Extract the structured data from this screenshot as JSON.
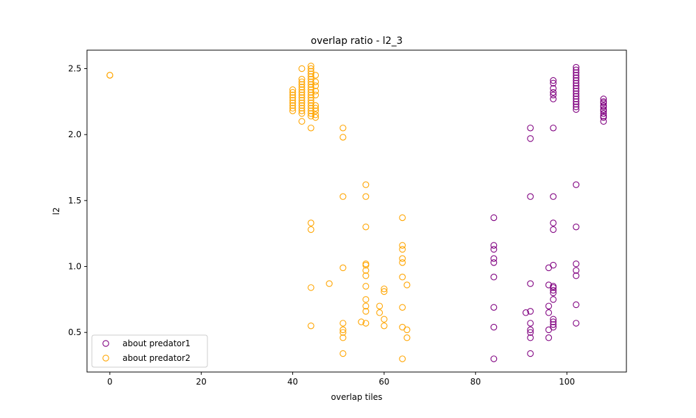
{
  "chart_data": {
    "type": "scatter",
    "title": "overlap ratio - l2_3",
    "xlabel": "overlap tiles",
    "ylabel": "l2",
    "xlim": [
      -5,
      113
    ],
    "ylim": [
      0.2,
      2.64
    ],
    "xticks": [
      0,
      20,
      40,
      60,
      80,
      100
    ],
    "yticks": [
      0.5,
      1.0,
      1.5,
      2.0,
      2.5
    ],
    "xtick_labels": [
      "0",
      "20",
      "40",
      "60",
      "80",
      "100"
    ],
    "ytick_labels": [
      "0.5",
      "1.0",
      "1.5",
      "2.0",
      "2.5"
    ],
    "grid": false,
    "legend_position": "lower-left",
    "series": [
      {
        "name": "about predator1",
        "color": "#800080",
        "marker": "open-circle",
        "points": [
          [
            84,
            1.37
          ],
          [
            84,
            1.16
          ],
          [
            84,
            1.13
          ],
          [
            84,
            1.06
          ],
          [
            84,
            1.03
          ],
          [
            84,
            0.92
          ],
          [
            84,
            0.69
          ],
          [
            84,
            0.54
          ],
          [
            84,
            0.3
          ],
          [
            91,
            0.65
          ],
          [
            92,
            2.05
          ],
          [
            92,
            1.97
          ],
          [
            92,
            1.53
          ],
          [
            92,
            0.87
          ],
          [
            92,
            0.66
          ],
          [
            92,
            0.57
          ],
          [
            92,
            0.52
          ],
          [
            92,
            0.5
          ],
          [
            92,
            0.46
          ],
          [
            92,
            0.34
          ],
          [
            96,
            0.99
          ],
          [
            96,
            0.86
          ],
          [
            96,
            0.7
          ],
          [
            96,
            0.65
          ],
          [
            96,
            0.52
          ],
          [
            96,
            0.46
          ],
          [
            97,
            2.41
          ],
          [
            97,
            2.39
          ],
          [
            97,
            2.35
          ],
          [
            97,
            2.32
          ],
          [
            97,
            2.3
          ],
          [
            97,
            2.27
          ],
          [
            97,
            2.05
          ],
          [
            97,
            1.53
          ],
          [
            97,
            1.33
          ],
          [
            97,
            1.28
          ],
          [
            97,
            1.01
          ],
          [
            97,
            0.85
          ],
          [
            97,
            0.84
          ],
          [
            97,
            0.82
          ],
          [
            97,
            0.8
          ],
          [
            97,
            0.75
          ],
          [
            97,
            0.6
          ],
          [
            97,
            0.58
          ],
          [
            97,
            0.56
          ],
          [
            97,
            0.54
          ],
          [
            102,
            2.51
          ],
          [
            102,
            2.49
          ],
          [
            102,
            2.47
          ],
          [
            102,
            2.45
          ],
          [
            102,
            2.43
          ],
          [
            102,
            2.41
          ],
          [
            102,
            2.39
          ],
          [
            102,
            2.37
          ],
          [
            102,
            2.35
          ],
          [
            102,
            2.33
          ],
          [
            102,
            2.31
          ],
          [
            102,
            2.29
          ],
          [
            102,
            2.27
          ],
          [
            102,
            2.25
          ],
          [
            102,
            2.23
          ],
          [
            102,
            2.21
          ],
          [
            102,
            2.19
          ],
          [
            102,
            1.62
          ],
          [
            102,
            1.3
          ],
          [
            102,
            1.02
          ],
          [
            102,
            0.97
          ],
          [
            102,
            0.93
          ],
          [
            102,
            0.71
          ],
          [
            102,
            0.57
          ],
          [
            108,
            2.27
          ],
          [
            108,
            2.25
          ],
          [
            108,
            2.24
          ],
          [
            108,
            2.22
          ],
          [
            108,
            2.21
          ],
          [
            108,
            2.19
          ],
          [
            108,
            2.18
          ],
          [
            108,
            2.16
          ],
          [
            108,
            2.14
          ],
          [
            108,
            2.13
          ],
          [
            108,
            2.1
          ]
        ]
      },
      {
        "name": "about predator2",
        "color": "#FFA500",
        "marker": "open-circle",
        "points": [
          [
            0,
            2.45
          ],
          [
            0,
            2.45
          ],
          [
            40,
            2.34
          ],
          [
            40,
            2.32
          ],
          [
            40,
            2.3
          ],
          [
            40,
            2.28
          ],
          [
            40,
            2.26
          ],
          [
            40,
            2.24
          ],
          [
            40,
            2.22
          ],
          [
            40,
            2.2
          ],
          [
            40,
            2.18
          ],
          [
            42,
            2.5
          ],
          [
            42,
            2.42
          ],
          [
            42,
            2.4
          ],
          [
            42,
            2.38
          ],
          [
            42,
            2.36
          ],
          [
            42,
            2.34
          ],
          [
            42,
            2.32
          ],
          [
            42,
            2.3
          ],
          [
            42,
            2.28
          ],
          [
            42,
            2.26
          ],
          [
            42,
            2.24
          ],
          [
            42,
            2.22
          ],
          [
            42,
            2.2
          ],
          [
            42,
            2.18
          ],
          [
            42,
            2.16
          ],
          [
            42,
            2.1
          ],
          [
            44,
            2.52
          ],
          [
            44,
            2.5
          ],
          [
            44,
            2.48
          ],
          [
            44,
            2.46
          ],
          [
            44,
            2.44
          ],
          [
            44,
            2.42
          ],
          [
            44,
            2.4
          ],
          [
            44,
            2.38
          ],
          [
            44,
            2.36
          ],
          [
            44,
            2.34
          ],
          [
            44,
            2.32
          ],
          [
            44,
            2.3
          ],
          [
            44,
            2.28
          ],
          [
            44,
            2.26
          ],
          [
            44,
            2.24
          ],
          [
            44,
            2.22
          ],
          [
            44,
            2.2
          ],
          [
            44,
            2.18
          ],
          [
            44,
            2.16
          ],
          [
            44,
            2.14
          ],
          [
            44,
            2.05
          ],
          [
            44,
            1.33
          ],
          [
            44,
            1.28
          ],
          [
            44,
            0.84
          ],
          [
            44,
            0.55
          ],
          [
            45,
            2.45
          ],
          [
            45,
            2.4
          ],
          [
            45,
            2.37
          ],
          [
            45,
            2.33
          ],
          [
            45,
            2.3
          ],
          [
            45,
            2.22
          ],
          [
            45,
            2.2
          ],
          [
            45,
            2.18
          ],
          [
            45,
            2.15
          ],
          [
            45,
            2.13
          ],
          [
            48,
            0.87
          ],
          [
            51,
            2.05
          ],
          [
            51,
            1.98
          ],
          [
            51,
            1.53
          ],
          [
            51,
            0.99
          ],
          [
            51,
            0.57
          ],
          [
            51,
            0.52
          ],
          [
            51,
            0.5
          ],
          [
            51,
            0.46
          ],
          [
            51,
            0.34
          ],
          [
            55,
            0.58
          ],
          [
            56,
            1.62
          ],
          [
            56,
            1.53
          ],
          [
            56,
            1.3
          ],
          [
            56,
            1.02
          ],
          [
            56,
            1.01
          ],
          [
            56,
            0.97
          ],
          [
            56,
            0.93
          ],
          [
            56,
            0.85
          ],
          [
            56,
            0.75
          ],
          [
            56,
            0.7
          ],
          [
            56,
            0.66
          ],
          [
            56,
            0.57
          ],
          [
            59,
            0.7
          ],
          [
            59,
            0.65
          ],
          [
            60,
            0.83
          ],
          [
            60,
            0.81
          ],
          [
            60,
            0.6
          ],
          [
            60,
            0.55
          ],
          [
            64,
            1.37
          ],
          [
            64,
            1.16
          ],
          [
            64,
            1.13
          ],
          [
            64,
            1.06
          ],
          [
            64,
            1.03
          ],
          [
            64,
            0.92
          ],
          [
            64,
            0.69
          ],
          [
            64,
            0.54
          ],
          [
            64,
            0.3
          ],
          [
            65,
            0.86
          ],
          [
            65,
            0.52
          ],
          [
            65,
            0.46
          ]
        ]
      }
    ]
  }
}
